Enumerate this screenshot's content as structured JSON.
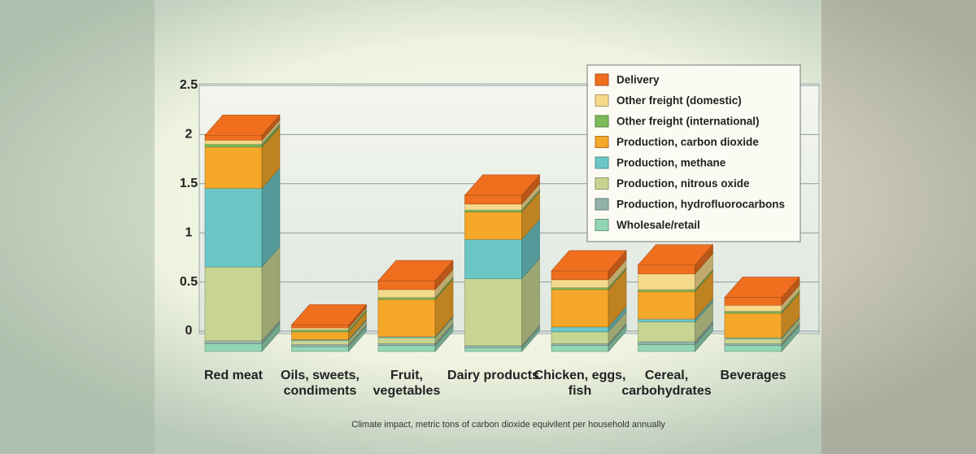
{
  "chart_data": {
    "type": "stacked-bar-3d",
    "xlabel": "Climate impact, metric tons of carbon dioxide equivilent per household annually",
    "categories": [
      "Red meat",
      "Oils, sweets, condiments",
      "Fruit, vegetables",
      "Dairy products",
      "Chicken, eggs, fish",
      "Cereal, carbohydrates",
      "Beverages"
    ],
    "series": [
      {
        "name": "Wholesale/retail",
        "color": "#93d6b4",
        "values": [
          0.08,
          0.05,
          0.06,
          0.04,
          0.06,
          0.07,
          0.06
        ]
      },
      {
        "name": "Production, hydrofluorocarbons",
        "color": "#93b3aa",
        "values": [
          0.03,
          0.02,
          0.02,
          0.02,
          0.02,
          0.03,
          0.02
        ]
      },
      {
        "name": "Production, nitrous oxide",
        "color": "#c8d592",
        "values": [
          0.75,
          0.04,
          0.06,
          0.68,
          0.12,
          0.2,
          0.05
        ]
      },
      {
        "name": "Production, methane",
        "color": "#6cc6c6",
        "values": [
          0.8,
          0.01,
          0.01,
          0.4,
          0.05,
          0.03,
          0.01
        ]
      },
      {
        "name": "Production, carbon dioxide",
        "color": "#f5a72a",
        "values": [
          0.42,
          0.08,
          0.38,
          0.28,
          0.38,
          0.28,
          0.25
        ]
      },
      {
        "name": "Other freight (international)",
        "color": "#7dba5a",
        "values": [
          0.03,
          0.02,
          0.02,
          0.02,
          0.02,
          0.02,
          0.02
        ]
      },
      {
        "name": "Other freight (domestic)",
        "color": "#f6da8c",
        "values": [
          0.04,
          0.02,
          0.08,
          0.06,
          0.08,
          0.16,
          0.06
        ]
      },
      {
        "name": "Delivery",
        "color": "#ef6f1f",
        "values": [
          0.05,
          0.03,
          0.09,
          0.09,
          0.09,
          0.09,
          0.08
        ]
      }
    ],
    "ylim": [
      0,
      2.5
    ],
    "yticks": [
      0,
      0.5,
      1,
      1.5,
      2,
      2.5
    ],
    "grid": true,
    "legend": "top-right"
  }
}
